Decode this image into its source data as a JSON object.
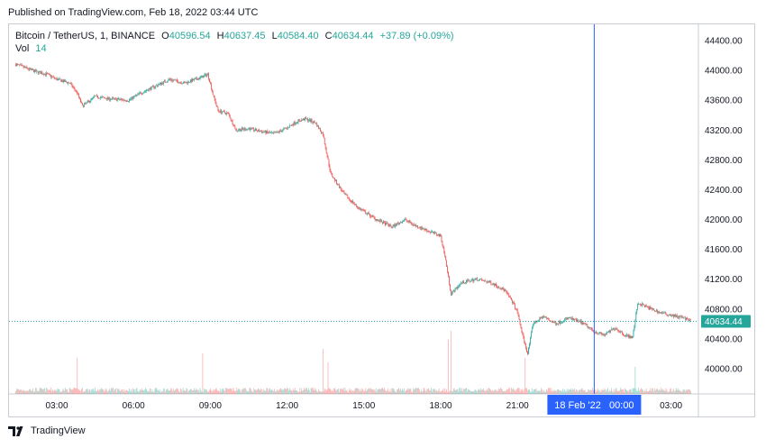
{
  "published": "Published on TradingView.com, Feb 18, 2022 03:44 UTC",
  "legend": {
    "symbol": "Bitcoin / TetherUS, 1, BINANCE",
    "o_key": "O",
    "o_val": "40596.54",
    "h_key": "H",
    "h_val": "40637.45",
    "l_key": "L",
    "l_val": "40584.40",
    "c_key": "C",
    "c_val": "40634.44",
    "change": "+37.89 (+0.09%)",
    "vol_key": "Vol",
    "vol_val": "14"
  },
  "last_price_label": "40634.44",
  "crosshair_label": "18 Feb '22   00:00",
  "footer": {
    "brand": "TradingView"
  },
  "colors": {
    "up": "#26a69a",
    "down": "#ef5350",
    "crosshair": "#2962ff",
    "crosshair_bg": "#2962ff",
    "last_price": "#26a69a"
  },
  "chart_data": {
    "type": "candlestick",
    "symbol": "Bitcoin / TetherUS",
    "interval": "1",
    "exchange": "BINANCE",
    "ylim": [
      39700,
      44700
    ],
    "y_ticks": [
      "44400.00",
      "44000.00",
      "43600.00",
      "43200.00",
      "42800.00",
      "42400.00",
      "42000.00",
      "41600.00",
      "41200.00",
      "40800.00",
      "40400.00",
      "40000.00"
    ],
    "y_tick_values": [
      44400,
      44000,
      43600,
      43200,
      42800,
      42400,
      42000,
      41600,
      41200,
      40800,
      40400,
      40000
    ],
    "x_range_hours": [
      1.4,
      3.9
    ],
    "x_ticks": [
      "03:00",
      "06:00",
      "09:00",
      "12:00",
      "15:00",
      "18:00",
      "21:00",
      "03:00"
    ],
    "x_tick_hours": [
      3,
      6,
      9,
      12,
      15,
      18,
      21,
      27
    ],
    "crosshair_hour": 24,
    "last_price": 40634.44,
    "price_path": [
      [
        1.4,
        44080
      ],
      [
        2.2,
        43980
      ],
      [
        2.6,
        43950
      ],
      [
        3.0,
        43880
      ],
      [
        3.5,
        43830
      ],
      [
        3.8,
        43700
      ],
      [
        4.0,
        43520
      ],
      [
        4.5,
        43650
      ],
      [
        5.0,
        43620
      ],
      [
        5.8,
        43600
      ],
      [
        6.3,
        43700
      ],
      [
        6.8,
        43780
      ],
      [
        7.4,
        43880
      ],
      [
        8.0,
        43830
      ],
      [
        8.6,
        43900
      ],
      [
        8.9,
        43950
      ],
      [
        9.1,
        43680
      ],
      [
        9.3,
        43460
      ],
      [
        9.7,
        43420
      ],
      [
        10.0,
        43200
      ],
      [
        10.5,
        43220
      ],
      [
        11.0,
        43180
      ],
      [
        11.5,
        43150
      ],
      [
        12.0,
        43230
      ],
      [
        12.3,
        43300
      ],
      [
        12.7,
        43350
      ],
      [
        13.1,
        43300
      ],
      [
        13.4,
        43140
      ],
      [
        13.7,
        42620
      ],
      [
        14.2,
        42350
      ],
      [
        14.8,
        42150
      ],
      [
        15.5,
        42000
      ],
      [
        16.1,
        41900
      ],
      [
        16.6,
        42000
      ],
      [
        17.0,
        41920
      ],
      [
        17.5,
        41850
      ],
      [
        18.0,
        41780
      ],
      [
        18.2,
        41450
      ],
      [
        18.4,
        41000
      ],
      [
        18.8,
        41150
      ],
      [
        19.4,
        41200
      ],
      [
        20.0,
        41150
      ],
      [
        20.5,
        41050
      ],
      [
        20.8,
        40900
      ],
      [
        21.0,
        40750
      ],
      [
        21.2,
        40450
      ],
      [
        21.4,
        40200
      ],
      [
        21.6,
        40600
      ],
      [
        22.0,
        40700
      ],
      [
        22.5,
        40600
      ],
      [
        23.0,
        40680
      ],
      [
        23.5,
        40620
      ],
      [
        24.0,
        40500
      ],
      [
        24.4,
        40450
      ],
      [
        24.8,
        40550
      ],
      [
        25.2,
        40450
      ],
      [
        25.5,
        40420
      ],
      [
        25.7,
        40880
      ],
      [
        26.1,
        40820
      ],
      [
        26.6,
        40750
      ],
      [
        27.0,
        40720
      ],
      [
        27.5,
        40680
      ],
      [
        27.8,
        40634.44
      ]
    ]
  }
}
